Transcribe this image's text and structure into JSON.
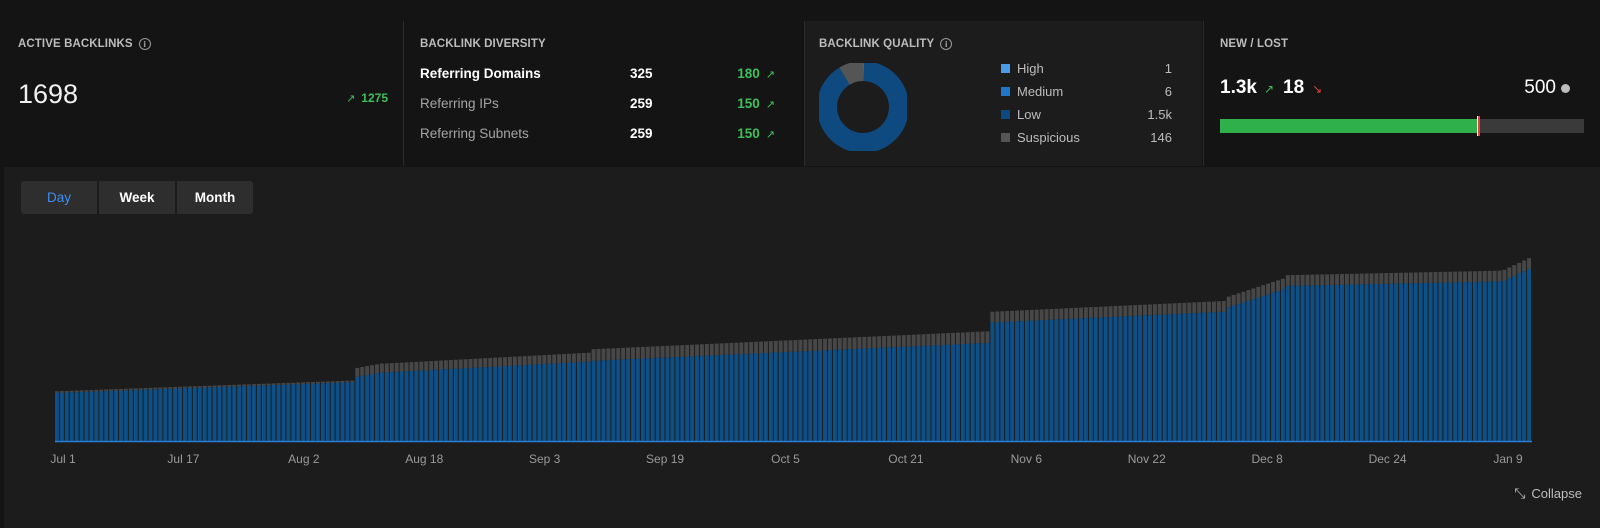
{
  "active_backlinks": {
    "title": "ACTIVE BACKLINKS",
    "value": "1698",
    "change": "1275"
  },
  "diversity": {
    "title": "BACKLINK DIVERSITY",
    "rows": [
      {
        "label": "Referring Domains",
        "value": "325",
        "change": "180"
      },
      {
        "label": "Referring IPs",
        "value": "259",
        "change": "150"
      },
      {
        "label": "Referring Subnets",
        "value": "259",
        "change": "150"
      }
    ]
  },
  "quality": {
    "title": "BACKLINK QUALITY",
    "legend": [
      {
        "label": "High",
        "count": "1",
        "value": 1,
        "color": "#4a9be8"
      },
      {
        "label": "Medium",
        "count": "6",
        "value": 6,
        "color": "#1f75c8"
      },
      {
        "label": "Low",
        "count": "1.5k",
        "value": 1545,
        "color": "#0e4a80"
      },
      {
        "label": "Suspicious",
        "count": "146",
        "value": 146,
        "color": "#555555"
      }
    ]
  },
  "new_lost": {
    "title": "NEW / LOST",
    "new": "1.3k",
    "lost": "18",
    "total": "500",
    "new_fraction": 0.71,
    "lost_fraction": 0.005
  },
  "tabs": [
    {
      "label": "Day",
      "active": true
    },
    {
      "label": "Week",
      "active": false
    },
    {
      "label": "Month",
      "active": false
    }
  ],
  "collapse_label": "Collapse",
  "colors": {
    "primary": "#0d4f87",
    "secondary": "#474747",
    "positive": "#3fbf5a",
    "negative": "#e0413a",
    "accent": "#3f8df0"
  },
  "chart_data": {
    "type": "bar",
    "stacked": true,
    "x_tick_labels": [
      "Jul 1",
      "Jul 17",
      "Aug 2",
      "Aug 18",
      "Sep 3",
      "Sep 19",
      "Oct 5",
      "Oct 21",
      "Nov 6",
      "Nov 22",
      "Dec 8",
      "Dec 24",
      "Jan 9"
    ],
    "series": [
      {
        "name": "Low",
        "color": "#0d4f87"
      },
      {
        "name": "Suspicious",
        "color": "#474747"
      }
    ],
    "segments": [
      {
        "from": 0,
        "to": 60,
        "primary_start": 540,
        "primary_end": 660,
        "secondary": 18
      },
      {
        "from": 61,
        "to": 66,
        "primary_start": 720,
        "primary_end": 770,
        "secondary": 100
      },
      {
        "from": 67,
        "to": 108,
        "primary_start": 770,
        "primary_end": 890,
        "secondary": 100
      },
      {
        "from": 109,
        "to": 189,
        "primary_start": 900,
        "primary_end": 1100,
        "secondary": 130
      },
      {
        "from": 190,
        "to": 237,
        "primary_start": 1330,
        "primary_end": 1450,
        "secondary": 120
      },
      {
        "from": 238,
        "to": 249,
        "primary_start": 1500,
        "primary_end": 1700,
        "secondary": 120
      },
      {
        "from": 250,
        "to": 293,
        "primary_start": 1740,
        "primary_end": 1790,
        "secondary": 120
      },
      {
        "from": 294,
        "to": 299,
        "primary_start": 1800,
        "primary_end": 1930,
        "secondary": 120
      }
    ],
    "bar_count": 300,
    "ylim": [
      0,
      2400
    ],
    "grid": false,
    "legend": "none"
  }
}
